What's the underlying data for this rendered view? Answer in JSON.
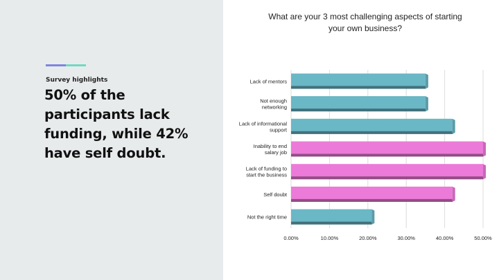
{
  "panel": {
    "kicker": "Survey highlights",
    "headline": "50% of the participants lack funding, while 42% have self doubt.",
    "accent_colors": [
      "#7b86e2",
      "#72d8c3"
    ],
    "background": "#e8ebec"
  },
  "chart_data": {
    "type": "bar",
    "orientation": "horizontal",
    "title": "What are your 3 most challenging aspects of starting your own business?",
    "xlabel": "",
    "ylabel": "",
    "xlim": [
      0,
      0.5
    ],
    "x_ticks": [
      "0.00%",
      "10.00%",
      "20.00%",
      "30.00%",
      "40.00%",
      "50.00%"
    ],
    "grid": "vertical",
    "categories": [
      [
        "Lack of mentors"
      ],
      [
        "Not enough",
        "networking"
      ],
      [
        "Lack of informational",
        "support"
      ],
      [
        "Inability to end",
        "salary job"
      ],
      [
        "Lack of funding to",
        "start the business"
      ],
      [
        "Self doubt"
      ],
      [
        "Not the right time"
      ]
    ],
    "values": [
      0.35,
      0.35,
      0.42,
      0.5,
      0.5,
      0.42,
      0.21
    ],
    "colors": [
      "#6ab7c6",
      "#6ab7c6",
      "#6ab7c6",
      "#ec7ad8",
      "#ec7ad8",
      "#ec7ad8",
      "#6ab7c6"
    ]
  }
}
